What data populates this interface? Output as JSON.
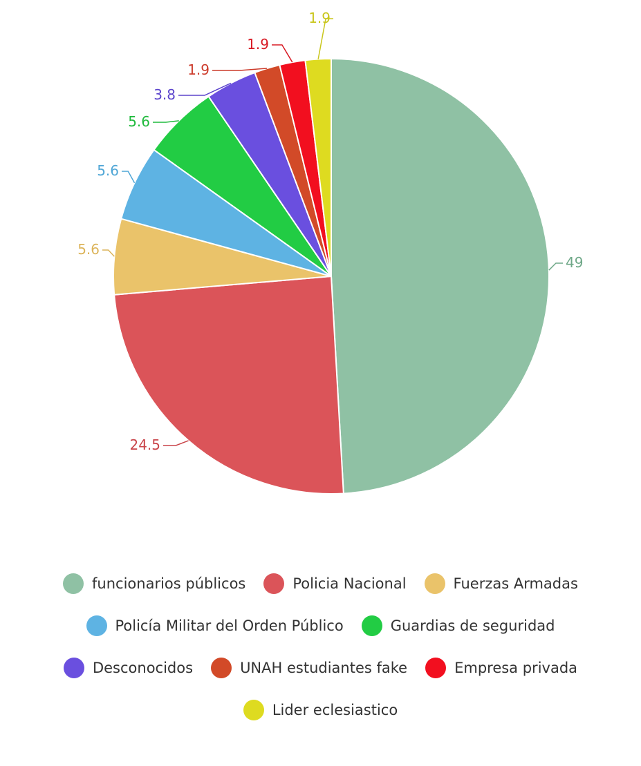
{
  "chart_data": {
    "type": "pie",
    "title": "",
    "slices": [
      {
        "name": "funcionarios públicos",
        "value": 49,
        "label": "49",
        "color": "#8fc1a4"
      },
      {
        "name": "Policia Nacional",
        "value": 24.5,
        "label": "24.5",
        "color": "#db5459"
      },
      {
        "name": "Fuerzas Armadas",
        "value": 5.6,
        "label": "5.6",
        "color": "#eac36a"
      },
      {
        "name": "Policía Militar del Orden Público",
        "value": 5.6,
        "label": "5.6",
        "color": "#5eb3e3"
      },
      {
        "name": "Guardias de seguridad",
        "value": 5.6,
        "label": "5.6",
        "color": "#22cc44"
      },
      {
        "name": "Desconocidos",
        "value": 3.8,
        "label": "3.8",
        "color": "#6a4fdf"
      },
      {
        "name": "UNAH estudiantes fake",
        "value": 1.9,
        "label": "1.9",
        "color": "#d24a28"
      },
      {
        "name": "Empresa privada",
        "value": 1.9,
        "label": "1.9",
        "color": "#f20f1f"
      },
      {
        "name": "Lider eclesiastico",
        "value": 1.9,
        "label": "1.9",
        "color": "#dedb20"
      }
    ],
    "legend": {
      "placement": "bottom",
      "rows": [
        [
          0,
          1,
          2
        ],
        [
          3,
          4
        ],
        [
          5,
          6,
          7
        ],
        [
          8
        ]
      ]
    }
  }
}
